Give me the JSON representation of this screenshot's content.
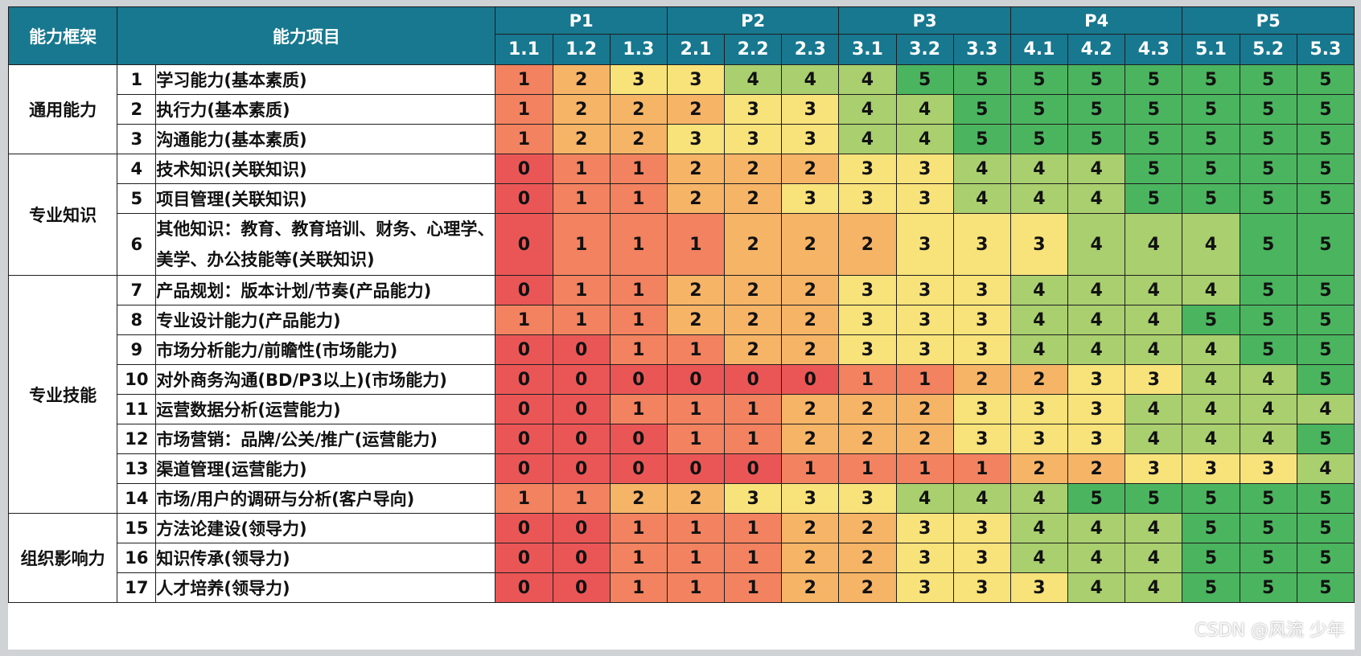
{
  "header": {
    "framework_label": "能力框架",
    "item_label": "能力项目",
    "groups": [
      "P1",
      "P2",
      "P3",
      "P4",
      "P5"
    ],
    "levels": [
      "1.1",
      "1.2",
      "1.3",
      "2.1",
      "2.2",
      "2.3",
      "3.1",
      "3.2",
      "3.3",
      "4.1",
      "4.2",
      "4.3",
      "5.1",
      "5.2",
      "5.3"
    ]
  },
  "categories": [
    {
      "name": "通用能力",
      "rows": 3
    },
    {
      "name": "专业知识",
      "rows": 3
    },
    {
      "name": "专业技能",
      "rows": 8
    },
    {
      "name": "组织影响力",
      "rows": 3
    }
  ],
  "rows": [
    {
      "no": "1",
      "item": "学习能力(基本素质)",
      "scores": [
        1,
        2,
        3,
        3,
        4,
        4,
        4,
        5,
        5,
        5,
        5,
        5,
        5,
        5,
        5
      ]
    },
    {
      "no": "2",
      "item": "执行力(基本素质)",
      "scores": [
        1,
        2,
        2,
        2,
        3,
        3,
        4,
        4,
        5,
        5,
        5,
        5,
        5,
        5,
        5
      ]
    },
    {
      "no": "3",
      "item": "沟通能力(基本素质)",
      "scores": [
        1,
        2,
        2,
        3,
        3,
        3,
        4,
        4,
        5,
        5,
        5,
        5,
        5,
        5,
        5
      ]
    },
    {
      "no": "4",
      "item": "技术知识(关联知识)",
      "scores": [
        0,
        1,
        1,
        2,
        2,
        2,
        3,
        3,
        4,
        4,
        4,
        5,
        5,
        5,
        5
      ]
    },
    {
      "no": "5",
      "item": "项目管理(关联知识)",
      "scores": [
        0,
        1,
        1,
        2,
        2,
        3,
        3,
        3,
        4,
        4,
        4,
        5,
        5,
        5,
        5
      ]
    },
    {
      "no": "6",
      "item": "其他知识：教育、教育培训、财务、心理学、美学、办公技能等(关联知识)",
      "scores": [
        0,
        1,
        1,
        1,
        2,
        2,
        2,
        3,
        3,
        3,
        4,
        4,
        4,
        5,
        5
      ]
    },
    {
      "no": "7",
      "item": "产品规划：版本计划/节奏(产品能力)",
      "scores": [
        0,
        1,
        1,
        2,
        2,
        2,
        3,
        3,
        3,
        4,
        4,
        4,
        4,
        5,
        5
      ]
    },
    {
      "no": "8",
      "item": "专业设计能力(产品能力)",
      "scores": [
        1,
        1,
        1,
        2,
        2,
        2,
        3,
        3,
        3,
        4,
        4,
        4,
        5,
        5,
        5
      ]
    },
    {
      "no": "9",
      "item": "市场分析能力/前瞻性(市场能力)",
      "scores": [
        0,
        0,
        1,
        1,
        2,
        2,
        3,
        3,
        3,
        4,
        4,
        4,
        4,
        5,
        5
      ]
    },
    {
      "no": "10",
      "item": "对外商务沟通(BD/P3以上)(市场能力)",
      "scores": [
        0,
        0,
        0,
        0,
        0,
        0,
        1,
        1,
        2,
        2,
        3,
        3,
        4,
        4,
        5
      ]
    },
    {
      "no": "11",
      "item": "运营数据分析(运营能力)",
      "scores": [
        0,
        0,
        1,
        1,
        1,
        2,
        2,
        2,
        3,
        3,
        3,
        4,
        4,
        4,
        4
      ]
    },
    {
      "no": "12",
      "item": "市场营销：品牌/公关/推广(运营能力)",
      "scores": [
        0,
        0,
        0,
        1,
        1,
        2,
        2,
        2,
        3,
        3,
        3,
        4,
        4,
        4,
        5
      ]
    },
    {
      "no": "13",
      "item": "渠道管理(运营能力)",
      "scores": [
        0,
        0,
        0,
        0,
        0,
        1,
        1,
        1,
        1,
        2,
        2,
        3,
        3,
        3,
        4
      ]
    },
    {
      "no": "14",
      "item": "市场/用户的调研与分析(客户导向)",
      "scores": [
        1,
        1,
        2,
        2,
        3,
        3,
        3,
        4,
        4,
        4,
        5,
        5,
        5,
        5,
        5
      ]
    },
    {
      "no": "15",
      "item": "方法论建设(领导力)",
      "scores": [
        0,
        0,
        1,
        1,
        1,
        2,
        2,
        3,
        3,
        4,
        4,
        4,
        5,
        5,
        5
      ]
    },
    {
      "no": "16",
      "item": "知识传承(领导力)",
      "scores": [
        0,
        0,
        1,
        1,
        1,
        2,
        2,
        3,
        3,
        4,
        4,
        4,
        5,
        5,
        5
      ]
    },
    {
      "no": "17",
      "item": "人才培养(领导力)",
      "scores": [
        0,
        0,
        1,
        1,
        1,
        2,
        2,
        3,
        3,
        3,
        4,
        4,
        5,
        5,
        5
      ]
    }
  ],
  "score_colors": {
    "0": "#ea5656",
    "1": "#f28260",
    "2": "#f6b467",
    "3": "#f8e27a",
    "4": "#a9cf6e",
    "5": "#4bb45f"
  },
  "header_color": "#17788f",
  "watermark": "CSDN @风流 少年"
}
